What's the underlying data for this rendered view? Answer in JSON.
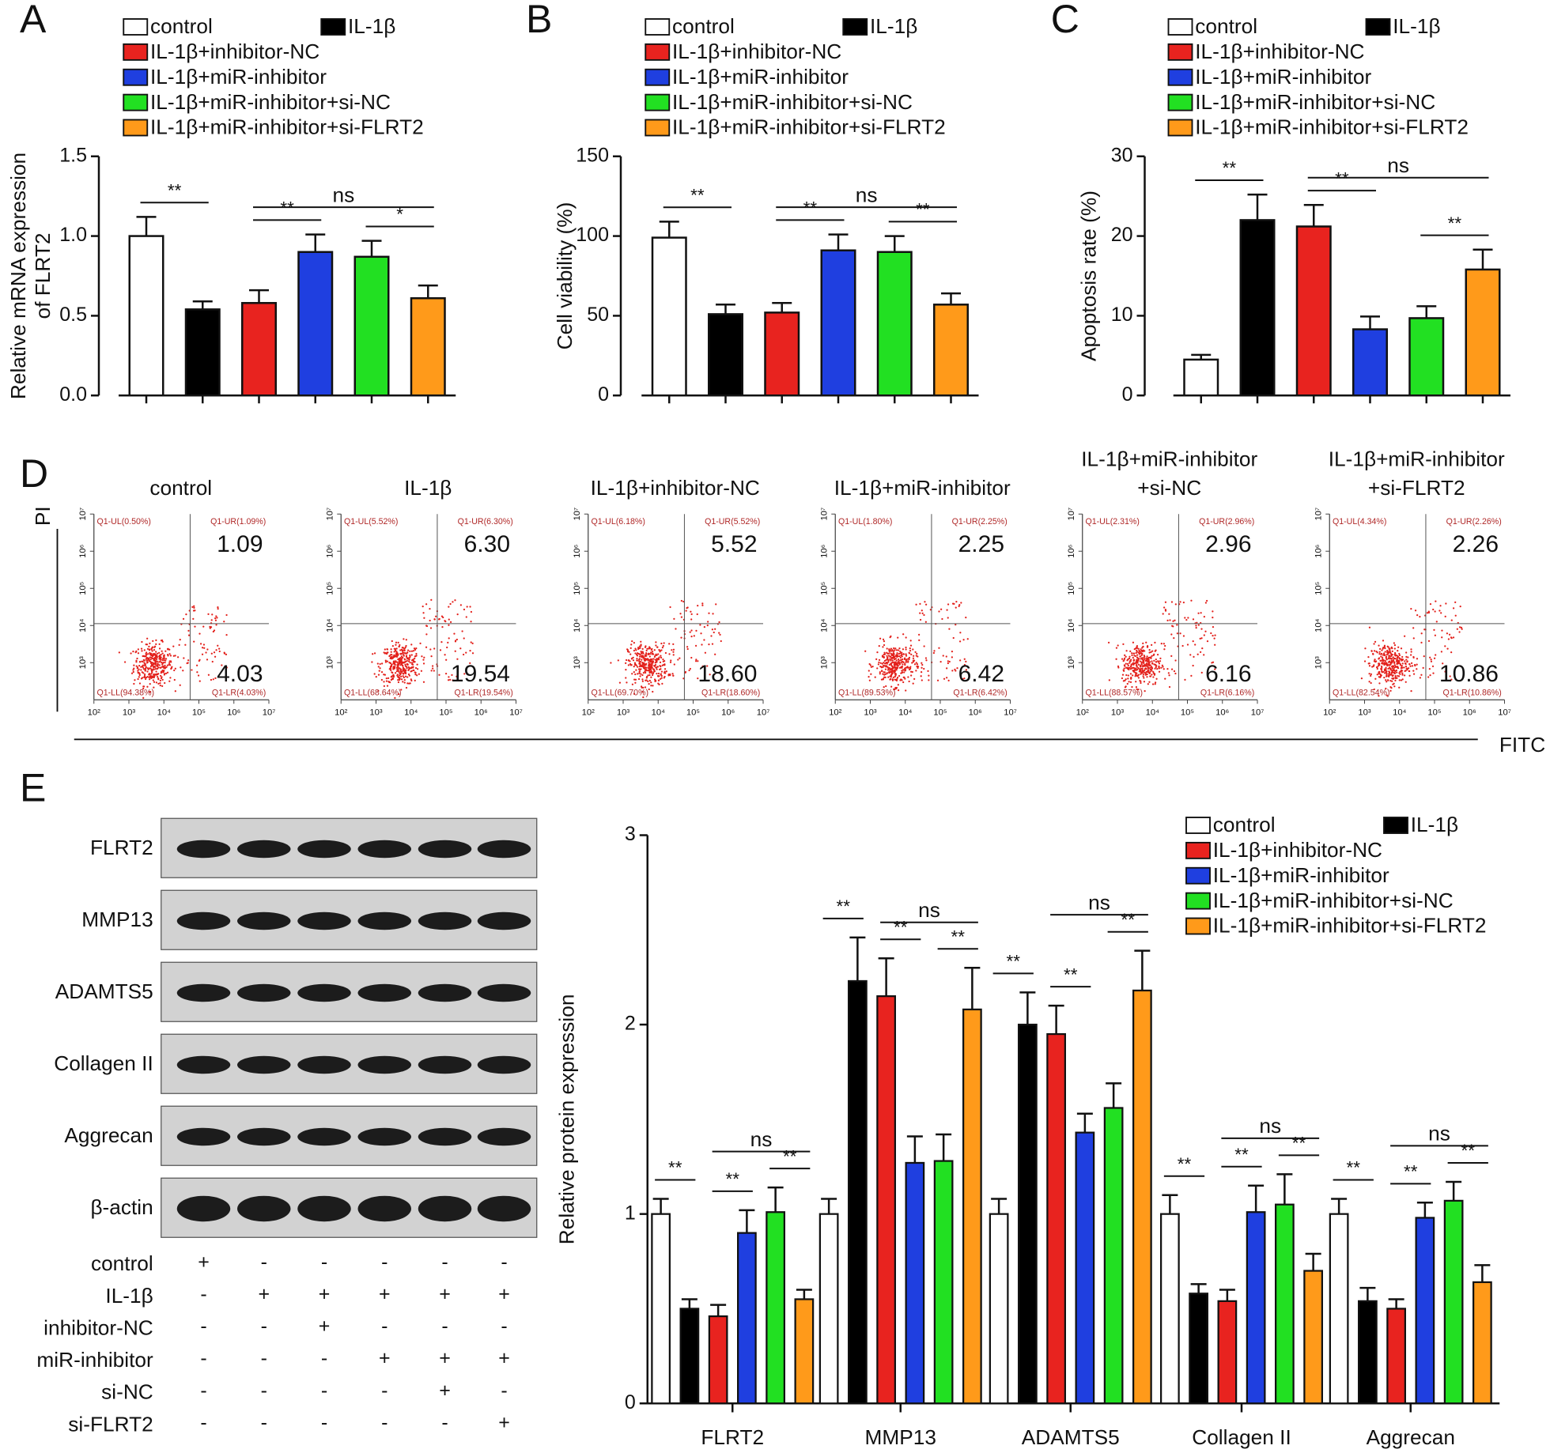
{
  "chart_data": [
    {
      "type": "bar",
      "panel": "A",
      "ylabel": [
        "Relative mRNA expression",
        "of FLRT2"
      ],
      "ylim": [
        0,
        1.5
      ],
      "yticks": [
        {
          "value": 0,
          "label": "0.0"
        },
        0.5,
        {
          "value": 1,
          "label": "1.0"
        },
        1.5
      ],
      "series": [
        {
          "name": "control",
          "color": "#ffffff",
          "values": [
            1.0
          ],
          "errors": [
            0.12
          ]
        },
        {
          "name": "IL-1β",
          "color": "#000000",
          "values": [
            0.54
          ],
          "errors": [
            0.05
          ]
        },
        {
          "name": "IL-1β+inhibitor-NC",
          "color": "#e8231f",
          "values": [
            0.58
          ],
          "errors": [
            0.08
          ]
        },
        {
          "name": "IL-1β+miR-inhibitor",
          "color": "#1f3fe0",
          "values": [
            0.9
          ],
          "errors": [
            0.11
          ]
        },
        {
          "name": "IL-1β+miR-inhibitor+si-NC",
          "color": "#22e022",
          "values": [
            0.87
          ],
          "errors": [
            0.1
          ]
        },
        {
          "name": "IL-1β+miR-inhibitor+si-FLRT2",
          "color": "#ff9a1a",
          "values": [
            0.61
          ],
          "errors": [
            0.08
          ]
        }
      ],
      "annotations": [
        "**",
        "ns",
        "**",
        "*"
      ]
    },
    {
      "type": "bar",
      "panel": "B",
      "ylabel": [
        "Cell viability (%)"
      ],
      "ylim": [
        0,
        150
      ],
      "yticks": [
        0,
        50,
        100,
        150
      ],
      "series": [
        {
          "name": "control",
          "color": "#ffffff",
          "values": [
            99
          ],
          "errors": [
            10
          ]
        },
        {
          "name": "IL-1β",
          "color": "#000000",
          "values": [
            51
          ],
          "errors": [
            6
          ]
        },
        {
          "name": "IL-1β+inhibitor-NC",
          "color": "#e8231f",
          "values": [
            52
          ],
          "errors": [
            6
          ]
        },
        {
          "name": "IL-1β+miR-inhibitor",
          "color": "#1f3fe0",
          "values": [
            91
          ],
          "errors": [
            10
          ]
        },
        {
          "name": "IL-1β+miR-inhibitor+si-NC",
          "color": "#22e022",
          "values": [
            90
          ],
          "errors": [
            10
          ]
        },
        {
          "name": "IL-1β+miR-inhibitor+si-FLRT2",
          "color": "#ff9a1a",
          "values": [
            57
          ],
          "errors": [
            7
          ]
        }
      ],
      "annotations": [
        "**",
        "ns",
        "**",
        "**"
      ]
    },
    {
      "type": "bar",
      "panel": "C",
      "ylabel": [
        "Apoptosis rate (%)"
      ],
      "ylim": [
        0,
        30
      ],
      "yticks": [
        0,
        10,
        20,
        30
      ],
      "series": [
        {
          "name": "control",
          "color": "#ffffff",
          "values": [
            4.5
          ],
          "errors": [
            0.6
          ]
        },
        {
          "name": "IL-1β",
          "color": "#000000",
          "values": [
            22
          ],
          "errors": [
            3.2
          ]
        },
        {
          "name": "IL-1β+inhibitor-NC",
          "color": "#e8231f",
          "values": [
            21.2
          ],
          "errors": [
            2.7
          ]
        },
        {
          "name": "IL-1β+miR-inhibitor",
          "color": "#1f3fe0",
          "values": [
            8.3
          ],
          "errors": [
            1.6
          ]
        },
        {
          "name": "IL-1β+miR-inhibitor+si-NC",
          "color": "#22e022",
          "values": [
            9.7
          ],
          "errors": [
            1.5
          ]
        },
        {
          "name": "IL-1β+miR-inhibitor+si-FLRT2",
          "color": "#ff9a1a",
          "values": [
            15.8
          ],
          "errors": [
            2.5
          ]
        }
      ],
      "annotations": [
        "**",
        "ns",
        "**",
        "**"
      ]
    },
    {
      "type": "flow",
      "panel": "D",
      "xlabel": "FITC",
      "ylabel": "PI",
      "xlim": [
        2,
        7
      ],
      "ylim": [
        2,
        7
      ],
      "xticks": [
        {
          "value": 2,
          "label": "10²"
        },
        {
          "value": 3,
          "label": "10³"
        },
        {
          "value": 4,
          "label": "10⁴"
        },
        {
          "value": 5,
          "label": "10⁵"
        },
        {
          "value": 6,
          "label": "10⁶"
        },
        {
          "value": 7,
          "label": "10⁷"
        }
      ],
      "yticks": [
        {
          "value": 3,
          "label": "10³"
        },
        {
          "value": 4,
          "label": "10⁴"
        },
        {
          "value": 5,
          "label": "10⁵"
        },
        {
          "value": 6,
          "label": "10⁶"
        },
        {
          "value": 7,
          "label": "10⁷"
        }
      ],
      "panels": [
        {
          "title": [
            "control"
          ],
          "quadrants": [
            "Q1-UL(0.50%)",
            "Q1-UR(1.09%)",
            "Q1-LL(94.38%)",
            "Q1-LR(4.03%)"
          ],
          "ur": "1.09",
          "lr": "4.03"
        },
        {
          "title": [
            "IL-1β"
          ],
          "quadrants": [
            "Q1-UL(5.52%)",
            "Q1-UR(6.30%)",
            "Q1-LL(68.64%)",
            "Q1-LR(19.54%)"
          ],
          "ur": "6.30",
          "lr": "19.54"
        },
        {
          "title": [
            "IL-1β+inhibitor-NC"
          ],
          "quadrants": [
            "Q1-UL(6.18%)",
            "Q1-UR(5.52%)",
            "Q1-LL(69.70%)",
            "Q1-LR(18.60%)"
          ],
          "ur": "5.52",
          "lr": "18.60"
        },
        {
          "title": [
            "IL-1β+miR-inhibitor"
          ],
          "quadrants": [
            "Q1-UL(1.80%)",
            "Q1-UR(2.25%)",
            "Q1-LL(89.53%)",
            "Q1-LR(6.42%)"
          ],
          "ur": "2.25",
          "lr": "6.42"
        },
        {
          "title": [
            "IL-1β+miR-inhibitor",
            "+si-NC"
          ],
          "quadrants": [
            "Q1-UL(2.31%)",
            "Q1-UR(2.96%)",
            "Q1-LL(88.57%)",
            "Q1-LR(6.16%)"
          ],
          "ur": "2.96",
          "lr": "6.16"
        },
        {
          "title": [
            "IL-1β+miR-inhibitor",
            "+si-FLRT2"
          ],
          "quadrants": [
            "Q1-UL(4.34%)",
            "Q1-UR(2.26%)",
            "Q1-LL(82.54%)",
            "Q1-LR(10.86%)"
          ],
          "ur": "2.26",
          "lr": "10.86"
        }
      ]
    },
    {
      "type": "grouped_bar",
      "panel": "E",
      "ylabel": [
        "Relative protein expression"
      ],
      "categories": [
        "FLRT2",
        "MMP13",
        "ADAMTS5",
        "Collagen II",
        "Aggrecan"
      ],
      "ylim": [
        0,
        3
      ],
      "yticks": [
        0,
        1,
        2,
        3
      ],
      "series": [
        {
          "name": "control",
          "color": "#ffffff",
          "values": [
            1,
            1,
            1,
            1,
            1
          ],
          "errors": [
            0.08,
            0.08,
            0.08,
            0.1,
            0.08
          ]
        },
        {
          "name": "IL-1β",
          "color": "#000000",
          "values": [
            0.5,
            2.23,
            2.0,
            0.58,
            0.54
          ],
          "errors": [
            0.05,
            0.23,
            0.17,
            0.05,
            0.07
          ]
        },
        {
          "name": "IL-1β+inhibitor-NC",
          "color": "#e8231f",
          "values": [
            0.46,
            2.15,
            1.95,
            0.54,
            0.5
          ],
          "errors": [
            0.06,
            0.2,
            0.15,
            0.06,
            0.05
          ]
        },
        {
          "name": "IL-1β+miR-inhibitor",
          "color": "#1f3fe0",
          "values": [
            0.9,
            1.27,
            1.43,
            1.01,
            0.98
          ],
          "errors": [
            0.12,
            0.14,
            0.1,
            0.14,
            0.08
          ]
        },
        {
          "name": "IL-1β+miR-inhibitor+si-NC",
          "color": "#22e022",
          "values": [
            1.01,
            1.28,
            1.56,
            1.05,
            1.07
          ],
          "errors": [
            0.13,
            0.14,
            0.13,
            0.16,
            0.1
          ]
        },
        {
          "name": "IL-1β+miR-inhibitor+si-FLRT2",
          "color": "#ff9a1a",
          "values": [
            0.55,
            2.08,
            2.18,
            0.7,
            0.64
          ],
          "errors": [
            0.05,
            0.22,
            0.21,
            0.09,
            0.09
          ]
        }
      ],
      "annotations": [
        [
          "**",
          "ns",
          "**",
          "**"
        ],
        [
          "**",
          "ns",
          "**",
          "**"
        ],
        [
          "**",
          "ns",
          "**",
          "**"
        ],
        [
          "**",
          "ns",
          "**",
          "**"
        ],
        [
          "**",
          "ns",
          "**",
          "**"
        ]
      ]
    }
  ],
  "blot": {
    "proteins": [
      "FLRT2",
      "MMP13",
      "ADAMTS5",
      "Collagen II",
      "Aggrecan",
      "β-actin"
    ],
    "treatments": [
      {
        "label": "control",
        "signs": [
          "+",
          "-",
          "-",
          "-",
          "-",
          "-"
        ]
      },
      {
        "label": "IL-1β",
        "signs": [
          "-",
          "+",
          "+",
          "+",
          "+",
          "+"
        ]
      },
      {
        "label": "inhibitor-NC",
        "signs": [
          "-",
          "-",
          "+",
          "-",
          "-",
          "-"
        ]
      },
      {
        "label": "miR-inhibitor",
        "signs": [
          "-",
          "-",
          "-",
          "+",
          "+",
          "+"
        ]
      },
      {
        "label": "si-NC",
        "signs": [
          "-",
          "-",
          "-",
          "-",
          "+",
          "-"
        ]
      },
      {
        "label": "si-FLRT2",
        "signs": [
          "-",
          "-",
          "-",
          "-",
          "-",
          "+"
        ]
      }
    ]
  }
}
